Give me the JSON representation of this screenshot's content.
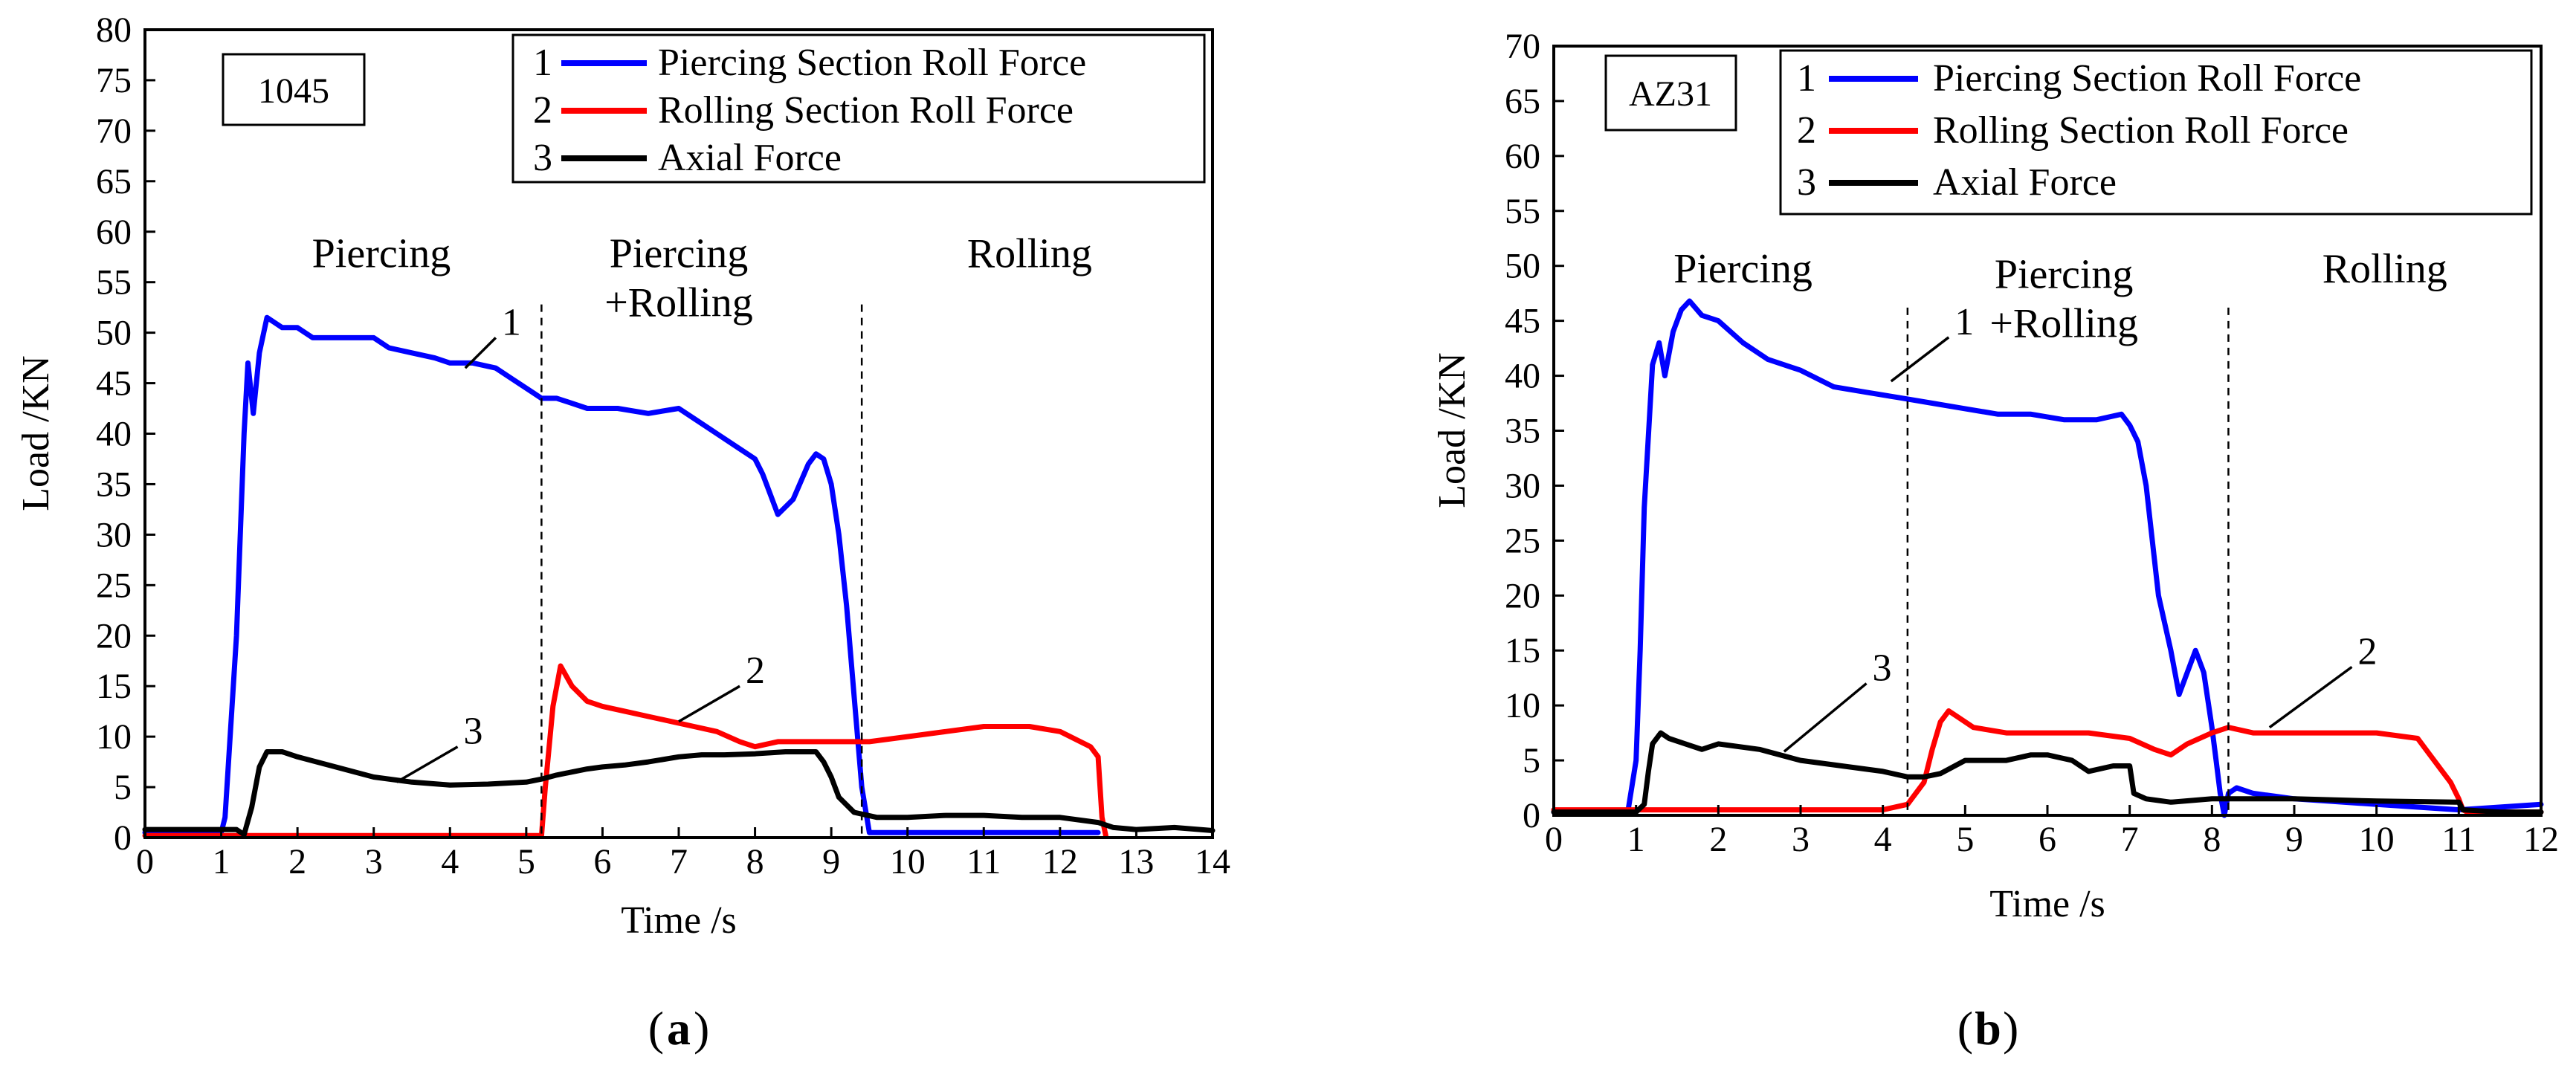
{
  "figure": {
    "panels": [
      {
        "label_open": "(",
        "label_letter": "a",
        "label_close": ")"
      },
      {
        "label_open": "(",
        "label_letter": "b",
        "label_close": ")"
      }
    ]
  },
  "chart_data": [
    {
      "type": "line",
      "material": "1045",
      "xlabel": "Time /s",
      "ylabel": "Load /KN",
      "xlim": [
        0,
        14
      ],
      "ylim": [
        0,
        80
      ],
      "xticks": [
        0,
        1,
        2,
        3,
        4,
        5,
        6,
        7,
        8,
        9,
        10,
        11,
        12,
        13,
        14
      ],
      "yticks": [
        0,
        5,
        10,
        15,
        20,
        25,
        30,
        35,
        40,
        45,
        50,
        55,
        60,
        65,
        70,
        75,
        80
      ],
      "phase_dividers": [
        5.2,
        9.4
      ],
      "phases": [
        {
          "lines": [
            "Piercing"
          ],
          "x": 3.1,
          "y": 56.5
        },
        {
          "lines": [
            "Piercing",
            "+Rolling"
          ],
          "x": 7.0,
          "y": 56.5
        },
        {
          "lines": [
            "Rolling"
          ],
          "x": 11.6,
          "y": 56.5
        }
      ],
      "legend": [
        {
          "num": "1",
          "label": "Piercing Section Roll Force",
          "color": "#0000ff"
        },
        {
          "num": "2",
          "label": "Rolling Section Roll Force",
          "color": "#ff0000"
        },
        {
          "num": "3",
          "label": "Axial Force",
          "color": "#000000"
        }
      ],
      "series": [
        {
          "name": "Piercing Section Roll Force",
          "color": "#0000ff",
          "x": [
            0,
            1.0,
            1.05,
            1.2,
            1.3,
            1.35,
            1.42,
            1.5,
            1.6,
            1.7,
            1.8,
            2.0,
            2.2,
            2.5,
            2.8,
            3.0,
            3.2,
            3.5,
            3.8,
            4.0,
            4.3,
            4.6,
            4.9,
            5.1,
            5.2,
            5.4,
            5.8,
            6.2,
            6.6,
            7.0,
            7.2,
            7.5,
            7.8,
            8.0,
            8.1,
            8.2,
            8.3,
            8.5,
            8.7,
            8.8,
            8.9,
            9.0,
            9.1,
            9.2,
            9.3,
            9.4,
            9.5,
            10,
            11,
            12,
            12.5
          ],
          "values": [
            0.5,
            0.5,
            2,
            20,
            40,
            47,
            42,
            48,
            51.5,
            51,
            50.5,
            50.5,
            49.5,
            49.5,
            49.5,
            49.5,
            48.5,
            48,
            47.5,
            47,
            47,
            46.5,
            45,
            44,
            43.5,
            43.5,
            42.5,
            42.5,
            42,
            42.5,
            41.5,
            40,
            38.5,
            37.5,
            36,
            34,
            32,
            33.5,
            37,
            38,
            37.5,
            35,
            30,
            23,
            14,
            5,
            0.5,
            0.5,
            0.5,
            0.5,
            0.5
          ]
        },
        {
          "name": "Rolling Section Roll Force",
          "color": "#ff0000",
          "x": [
            0,
            5.2,
            5.25,
            5.35,
            5.45,
            5.6,
            5.8,
            6.0,
            6.3,
            6.6,
            6.9,
            7.2,
            7.5,
            7.8,
            8.0,
            8.3,
            8.6,
            9.0,
            9.5,
            10,
            10.5,
            11,
            11.3,
            11.6,
            12,
            12.4,
            12.5,
            12.55,
            12.6
          ],
          "values": [
            0.2,
            0.2,
            5,
            13,
            17,
            15,
            13.5,
            13,
            12.5,
            12,
            11.5,
            11,
            10.5,
            9.5,
            9,
            9.5,
            9.5,
            9.5,
            9.5,
            10,
            10.5,
            11,
            11,
            11,
            10.5,
            9,
            8,
            2,
            0.2
          ]
        },
        {
          "name": "Axial Force",
          "color": "#000000",
          "x": [
            0,
            1.0,
            1.2,
            1.3,
            1.4,
            1.5,
            1.6,
            1.8,
            2.0,
            2.5,
            3.0,
            3.5,
            4.0,
            4.5,
            5.0,
            5.2,
            5.4,
            5.6,
            5.8,
            6.0,
            6.3,
            6.6,
            7.0,
            7.3,
            7.6,
            8.0,
            8.4,
            8.8,
            8.9,
            9.0,
            9.1,
            9.3,
            9.6,
            10,
            10.5,
            11,
            11.5,
            12,
            12.5,
            12.7,
            13,
            13.5,
            14
          ],
          "values": [
            0.8,
            0.8,
            0.8,
            0.3,
            3,
            7,
            8.5,
            8.5,
            8,
            7,
            6,
            5.5,
            5.2,
            5.3,
            5.5,
            5.8,
            6.2,
            6.5,
            6.8,
            7,
            7.2,
            7.5,
            8,
            8.2,
            8.2,
            8.3,
            8.5,
            8.5,
            7.5,
            6,
            4,
            2.5,
            2,
            2,
            2.2,
            2.2,
            2,
            2,
            1.5,
            1,
            0.8,
            1,
            0.7
          ]
        }
      ],
      "callouts": [
        {
          "text": "1",
          "from": [
            4.2,
            46.5
          ],
          "to": [
            4.6,
            49.5
          ]
        },
        {
          "text": "2",
          "from": [
            7.0,
            11.5
          ],
          "to": [
            7.8,
            15.0
          ]
        },
        {
          "text": "3",
          "from": [
            3.3,
            5.5
          ],
          "to": [
            4.1,
            9.0
          ]
        }
      ]
    },
    {
      "type": "line",
      "material": "AZ31",
      "xlabel": "Time /s",
      "ylabel": "Load /KN",
      "xlim": [
        0,
        12
      ],
      "ylim": [
        0,
        70
      ],
      "xticks": [
        0,
        1,
        2,
        3,
        4,
        5,
        6,
        7,
        8,
        9,
        10,
        11,
        12
      ],
      "yticks": [
        0,
        5,
        10,
        15,
        20,
        25,
        30,
        35,
        40,
        45,
        50,
        55,
        60,
        65,
        70
      ],
      "phase_dividers": [
        4.3,
        8.2
      ],
      "phases": [
        {
          "lines": [
            "Piercing"
          ],
          "x": 2.3,
          "y": 48.5
        },
        {
          "lines": [
            "Piercing",
            "+Rolling"
          ],
          "x": 6.2,
          "y": 48.0
        },
        {
          "lines": [
            "Rolling"
          ],
          "x": 10.1,
          "y": 48.5
        }
      ],
      "legend": [
        {
          "num": "1",
          "label": "Piercing Section Roll Force",
          "color": "#0000ff"
        },
        {
          "num": "2",
          "label": "Rolling Section Roll Force",
          "color": "#ff0000"
        },
        {
          "num": "3",
          "label": "Axial Force",
          "color": "#000000"
        }
      ],
      "series": [
        {
          "name": "Piercing Section Roll Force",
          "color": "#0000ff",
          "x": [
            0,
            0.9,
            1.0,
            1.05,
            1.1,
            1.2,
            1.28,
            1.35,
            1.45,
            1.55,
            1.65,
            1.8,
            2.0,
            2.3,
            2.6,
            3.0,
            3.4,
            3.8,
            4.2,
            4.6,
            5.0,
            5.4,
            5.8,
            6.2,
            6.6,
            6.9,
            7.0,
            7.1,
            7.2,
            7.35,
            7.5,
            7.6,
            7.7,
            7.8,
            7.9,
            8.0,
            8.05,
            8.1,
            8.15,
            8.2,
            8.3,
            8.5,
            9,
            10,
            11,
            12
          ],
          "values": [
            0.3,
            0.3,
            5,
            15,
            28,
            41,
            43,
            40,
            44,
            46,
            46.8,
            45.5,
            45,
            43,
            41.5,
            40.5,
            39,
            38.5,
            38,
            37.5,
            37,
            36.5,
            36.5,
            36,
            36,
            36.5,
            35.5,
            34,
            30,
            20,
            15,
            11,
            13,
            15,
            13,
            8,
            5,
            2,
            0,
            2,
            2.5,
            2,
            1.5,
            1,
            0.5,
            1
          ]
        },
        {
          "name": "Rolling Section Roll Force",
          "color": "#ff0000",
          "x": [
            0,
            4.0,
            4.3,
            4.5,
            4.6,
            4.7,
            4.8,
            4.9,
            5.1,
            5.5,
            6.0,
            6.5,
            7.0,
            7.3,
            7.5,
            7.7,
            8.0,
            8.2,
            8.5,
            9.0,
            9.5,
            10,
            10.5,
            10.8,
            10.9,
            11.0,
            11.05,
            11.1,
            11.5,
            12
          ],
          "values": [
            0.5,
            0.5,
            1,
            3,
            6,
            8.5,
            9.5,
            9,
            8,
            7.5,
            7.5,
            7.5,
            7,
            6,
            5.5,
            6.5,
            7.5,
            8,
            7.5,
            7.5,
            7.5,
            7.5,
            7,
            4,
            3,
            1.5,
            0.5,
            0.3,
            0.3,
            0.3
          ]
        },
        {
          "name": "Axial Force",
          "color": "#000000",
          "x": [
            0,
            1.0,
            1.1,
            1.15,
            1.2,
            1.3,
            1.4,
            1.6,
            1.8,
            2.0,
            2.5,
            3.0,
            3.5,
            4.0,
            4.3,
            4.5,
            4.7,
            5.0,
            5.5,
            5.8,
            6.0,
            6.3,
            6.5,
            6.8,
            7.0,
            7.05,
            7.2,
            7.5,
            8,
            9,
            10,
            11,
            11.05,
            11.5,
            12
          ],
          "values": [
            0.3,
            0.3,
            1,
            4,
            6.5,
            7.5,
            7,
            6.5,
            6,
            6.5,
            6,
            5,
            4.5,
            4,
            3.5,
            3.5,
            3.8,
            5,
            5,
            5.5,
            5.5,
            5,
            4,
            4.5,
            4.5,
            2,
            1.5,
            1.2,
            1.5,
            1.5,
            1.3,
            1.2,
            0.5,
            0.3,
            0.3
          ]
        }
      ],
      "callouts": [
        {
          "text": "1",
          "from": [
            4.1,
            39.5
          ],
          "to": [
            4.8,
            43.5
          ]
        },
        {
          "text": "2",
          "from": [
            8.7,
            8.0
          ],
          "to": [
            9.7,
            13.5
          ]
        },
        {
          "text": "3",
          "from": [
            2.8,
            5.8
          ],
          "to": [
            3.8,
            12.0
          ]
        }
      ]
    }
  ]
}
